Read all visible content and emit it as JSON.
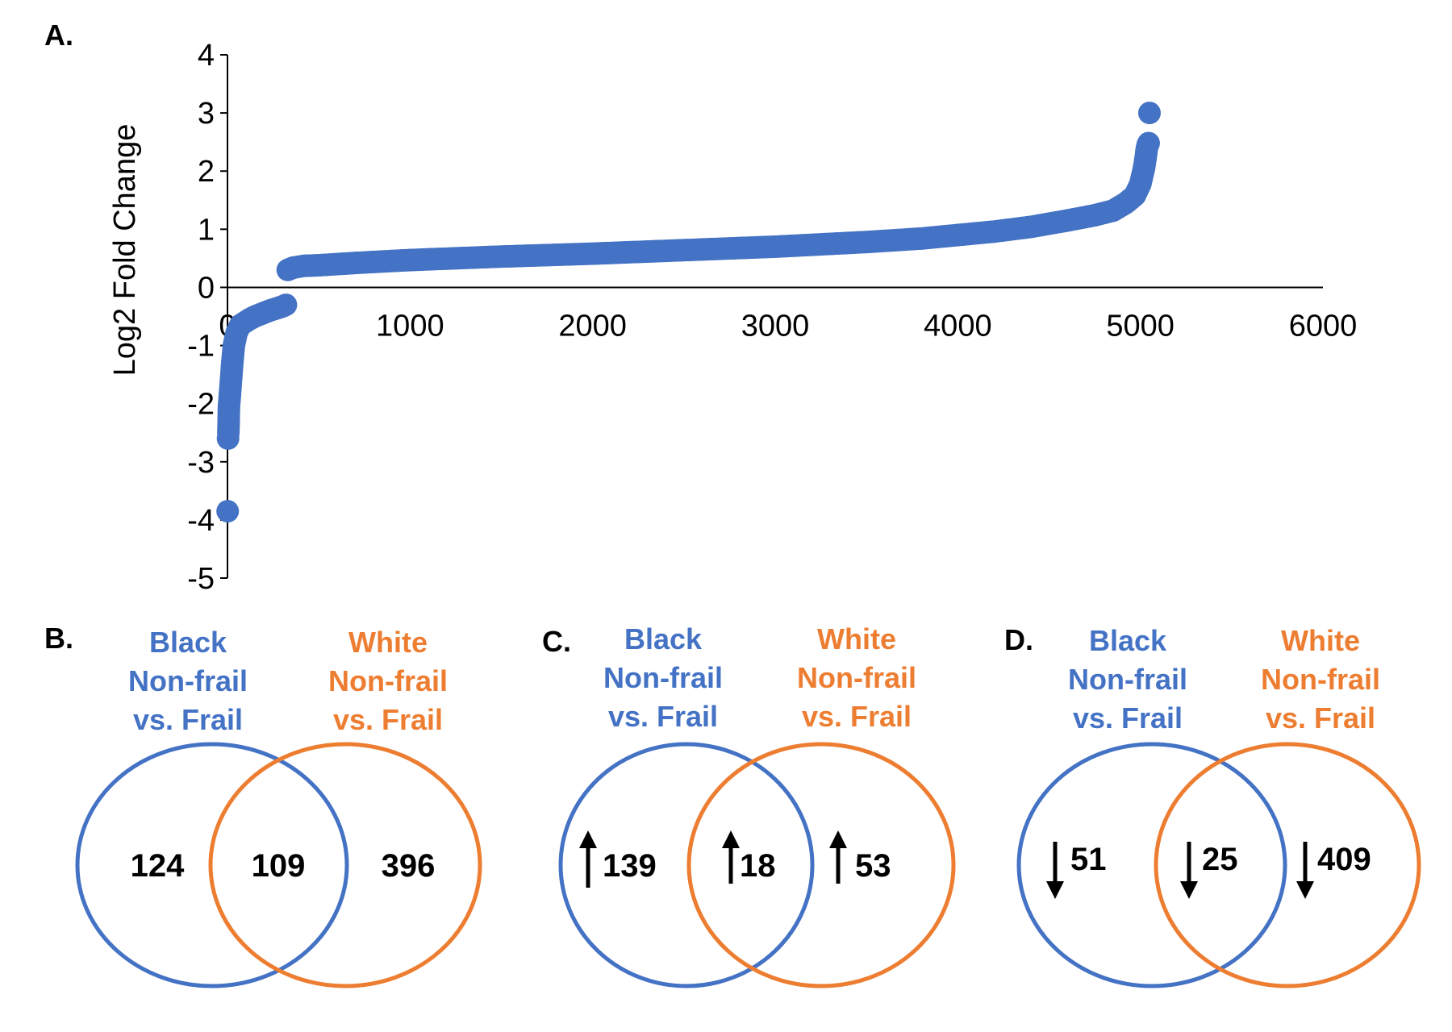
{
  "panels": {
    "a": "A.",
    "b": "B.",
    "c": "C.",
    "d": "D."
  },
  "colors": {
    "points": "#4472C4",
    "black_group": "#4472C4",
    "white_group": "#ED7D31",
    "text": "#000000"
  },
  "chart_data": [
    {
      "type": "scatter",
      "panel": "A.",
      "title": "",
      "xlabel": "",
      "ylabel": "Log2 Fold Change",
      "xlim": [
        0,
        6000
      ],
      "ylim": [
        -5,
        4
      ],
      "x_ticks": [
        "0",
        "1000",
        "2000",
        "3000",
        "4000",
        "5000",
        "6000"
      ],
      "y_ticks": [
        "4",
        "3",
        "2",
        "1",
        "0",
        "-1",
        "-2",
        "-3",
        "-4",
        "-5"
      ],
      "grid": false,
      "series": [
        {
          "x": [
            1,
            3,
            5,
            8,
            12,
            18,
            25,
            35,
            50,
            70,
            95,
            120,
            150,
            190,
            230,
            270,
            300,
            320,
            330,
            345,
            360,
            380,
            420,
            500,
            700,
            1000,
            1500,
            2000,
            2500,
            3000,
            3500,
            3800,
            4000,
            4200,
            4400,
            4600,
            4750,
            4850,
            4920,
            4970,
            5000,
            5020,
            5030,
            5035,
            5040,
            5045,
            5050
          ],
          "y": [
            -3.85,
            -2.6,
            -2.5,
            -2.05,
            -1.9,
            -1.65,
            -1.35,
            -1.0,
            -0.78,
            -0.65,
            -0.6,
            -0.55,
            -0.5,
            -0.45,
            -0.4,
            -0.36,
            -0.33,
            -0.3,
            0.3,
            0.32,
            0.34,
            0.35,
            0.37,
            0.38,
            0.42,
            0.47,
            0.53,
            0.58,
            0.64,
            0.7,
            0.78,
            0.84,
            0.9,
            0.96,
            1.04,
            1.15,
            1.24,
            1.32,
            1.45,
            1.58,
            1.78,
            2.05,
            2.25,
            2.38,
            2.45,
            2.48,
            3.0
          ]
        }
      ]
    },
    {
      "type": "venn",
      "panel": "B.",
      "sets": [
        "Black Non-frail vs. Frail",
        "White Non-frail vs. Frail"
      ],
      "values": {
        "black_only": "124",
        "both": "109",
        "white_only": "396"
      }
    },
    {
      "type": "venn",
      "panel": "C.",
      "direction": "up",
      "sets": [
        "Black Non-frail vs. Frail",
        "White Non-frail vs. Frail"
      ],
      "values": {
        "black_only": "139",
        "both": "18",
        "white_only": "53"
      }
    },
    {
      "type": "venn",
      "panel": "D.",
      "direction": "down",
      "sets": [
        "Black Non-frail vs. Frail",
        "White Non-frail vs. Frail"
      ],
      "values": {
        "black_only": "51",
        "both": "25",
        "white_only": "409"
      }
    }
  ],
  "venn_titles": {
    "black": [
      "Black",
      "Non-frail",
      "vs. Frail"
    ],
    "white": [
      "White",
      "Non-frail",
      "vs. Frail"
    ]
  },
  "icons": {
    "up": "arrow-up-icon",
    "down": "arrow-down-icon"
  }
}
